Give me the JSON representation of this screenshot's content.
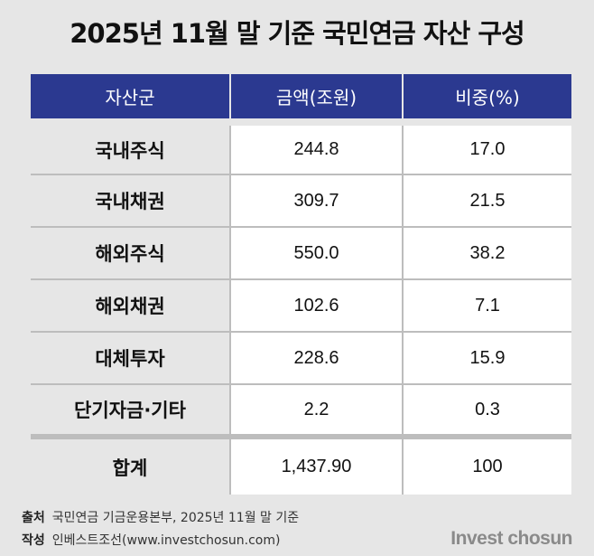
{
  "title": "2025년 11월 말 기준 국민연금 자산 구성",
  "chart_data": {
    "type": "table",
    "title": "2025년 11월 말 기준 국민연금 자산 구성",
    "columns": [
      "자산군",
      "금액(조원)",
      "비중(%)"
    ],
    "rows": [
      {
        "category": "국내주식",
        "amount": "244.8",
        "share": "17.0"
      },
      {
        "category": "국내채권",
        "amount": "309.7",
        "share": "21.5"
      },
      {
        "category": "해외주식",
        "amount": "550.0",
        "share": "38.2"
      },
      {
        "category": "해외채권",
        "amount": "102.6",
        "share": "7.1"
      },
      {
        "category": "대체투자",
        "amount": "228.6",
        "share": "15.9"
      },
      {
        "category": "단기자금·기타",
        "amount": "2.2",
        "share": "0.3"
      }
    ],
    "total": {
      "category": "합계",
      "amount": "1,437.90",
      "share": "100"
    }
  },
  "footer": {
    "source_label": "출처",
    "source_text": "국민연금 기금운용본부, 2025년 11월 말 기준",
    "author_label": "작성",
    "author_text": "인베스트조선(www.investchosun.com)"
  },
  "brand": "Invest chosun",
  "colors": {
    "header_bg": "#2b3990",
    "page_bg": "#e6e6e6"
  }
}
